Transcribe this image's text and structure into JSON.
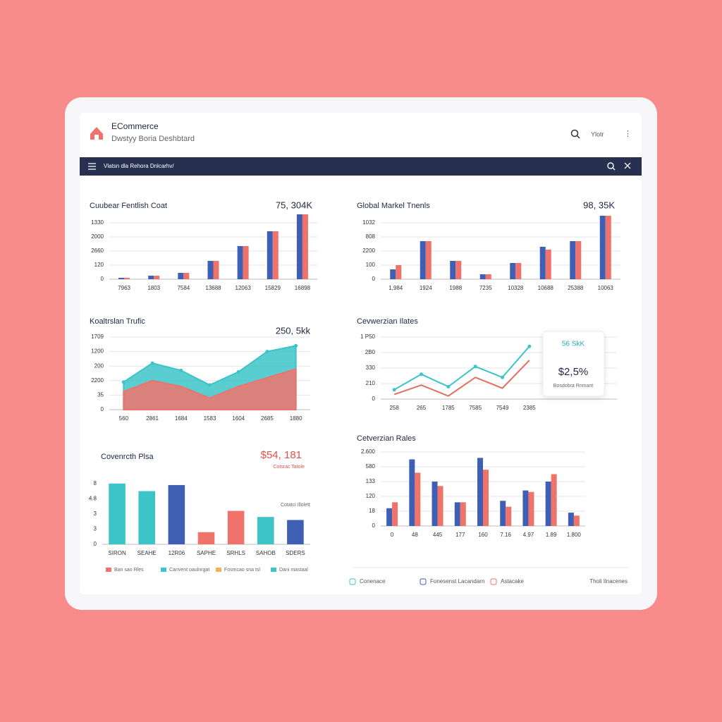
{
  "header": {
    "title": "ECommerce",
    "subtitle": "Dwstyy Boria Deshbtard",
    "search": "Ylotr"
  },
  "nav": {
    "label": "Vlatsn dla Rehora Dnlcarhv/"
  },
  "chart_data": [
    {
      "type": "bar",
      "title": "Cuubear Fentlish Coat",
      "highlight": "75, 304K",
      "categories": [
        "7963",
        "1803",
        "7584",
        "13688",
        "12063",
        "15829",
        "16898"
      ],
      "series": [
        {
          "color": "#3f5fb5",
          "values": [
            0.1,
            0.25,
            0.45,
            1.3,
            2.35,
            3.4,
            4.6
          ]
        },
        {
          "color": "#f0736b",
          "values": [
            0.1,
            0.25,
            0.45,
            1.3,
            2.35,
            3.4,
            4.6
          ]
        }
      ],
      "ylim": [
        0,
        5
      ],
      "yticks": [
        0,
        {
          "value": 1,
          "label": "120"
        },
        {
          "value": 2,
          "label": "2660"
        },
        {
          "value": 3,
          "label": "2000"
        },
        {
          "value": 4,
          "label": "1330"
        }
      ],
      "grid": true
    },
    {
      "type": "bar",
      "title": "Global Markel Tnenls",
      "highlight": "98, 35K",
      "categories": [
        "1,984",
        "1924",
        "1988",
        "7235",
        "10328",
        "10688",
        "25388",
        "10063"
      ],
      "series": [
        {
          "color": "#3f5fb5",
          "values": [
            0.7,
            2.7,
            1.3,
            0.35,
            1.15,
            2.3,
            2.7,
            4.5
          ]
        },
        {
          "color": "#f0736b",
          "values": [
            1.0,
            2.7,
            1.3,
            0.35,
            1.15,
            2.1,
            2.7,
            4.5
          ]
        }
      ],
      "ylim": [
        0,
        5
      ],
      "yticks": [
        0,
        {
          "value": 1,
          "label": "100"
        },
        {
          "value": 2,
          "label": "2200"
        },
        {
          "value": 3,
          "label": "808"
        },
        {
          "value": 4,
          "label": "1032"
        }
      ],
      "grid": true
    },
    {
      "type": "area",
      "title": "Koaltrslan Trufic",
      "highlight": "250, 5kk",
      "categories": [
        "560",
        "2861",
        "1684",
        "1583",
        "1604",
        "2685",
        "1880"
      ],
      "series": [
        {
          "color": "#3dc4c8",
          "values": [
            1.9,
            3.2,
            2.7,
            1.7,
            2.6,
            4.0,
            4.4
          ]
        },
        {
          "color": "#f0736b",
          "values": [
            1.25,
            2.0,
            1.6,
            0.8,
            1.6,
            2.2,
            2.8
          ]
        }
      ],
      "ylim": [
        0,
        5
      ],
      "yticks": [
        0,
        {
          "value": 1,
          "label": "35"
        },
        {
          "value": 2,
          "label": "2200"
        },
        {
          "value": 3,
          "label": "200"
        },
        {
          "value": 4,
          "label": "1200"
        },
        {
          "value": 5,
          "label": "1709"
        }
      ],
      "grid": true
    },
    {
      "type": "line",
      "title": "Cevwerzian Ilates",
      "categories": [
        "258",
        "265",
        "1785",
        "7585",
        "7549",
        "2385"
      ],
      "series": [
        {
          "color": "#3dc4c8",
          "values": [
            0.6,
            1.6,
            0.8,
            2.1,
            1.4,
            3.4
          ]
        },
        {
          "color": "#e0705f",
          "values": [
            0.3,
            0.9,
            0.2,
            1.4,
            0.7,
            2.5
          ]
        }
      ],
      "ylim": [
        0,
        4.5
      ],
      "yticks": [
        0,
        {
          "value": 1,
          "label": "210"
        },
        {
          "value": 2,
          "label": "330"
        },
        {
          "value": 3,
          "label": "2B0"
        },
        {
          "value": 4,
          "label": "1 P50"
        }
      ],
      "grid": true,
      "tooltip": {
        "title": "56 SkK",
        "value": "$2,5%",
        "caption": "Bosdobra Rnmant"
      }
    },
    {
      "type": "bar",
      "title": "Covenrcth Plsa",
      "highlight": "$54, 181",
      "highlight_caption": "Cotsrac Tatole",
      "annotation": "Cotatci Illolett",
      "categories": [
        "SIRON",
        "SEAHE",
        "12R06",
        "SAPHE",
        "SRHLS",
        "SAHOB",
        "SDERS"
      ],
      "values": [
        4.0,
        3.5,
        3.9,
        0.8,
        2.2,
        1.8,
        1.6
      ],
      "colors": [
        "#3dc4c8",
        "#3dc4c8",
        "#3f5fb5",
        "#f0736b",
        "#f0736b",
        "#3dc4c8",
        "#3f5fb5"
      ],
      "ylim": [
        0,
        4.5
      ],
      "yticks": [
        0,
        {
          "value": 1,
          "label": "3"
        },
        {
          "value": 2,
          "label": "3"
        },
        {
          "value": 3,
          "label": "4.8"
        },
        {
          "value": 4,
          "label": "8"
        }
      ],
      "grid": false,
      "legend": [
        {
          "name": "Ban sao Rles",
          "color": "#f0736b"
        },
        {
          "name": "Canvent oaulnrgat",
          "color": "#3dc4c8"
        },
        {
          "name": "Fosmcao sna tsl",
          "color": "#f2b25a"
        },
        {
          "name": "Dani mastaal",
          "color": "#3dc4c8"
        }
      ]
    },
    {
      "type": "bar",
      "title": "Cetverzian Rales",
      "categories": [
        "0",
        "48",
        "445",
        "177",
        "160",
        "7.16",
        "4.97",
        "1.89",
        "1.800"
      ],
      "series": [
        {
          "color": "#3f5fb5",
          "values": [
            1.2,
            4.5,
            3.0,
            1.6,
            4.6,
            1.7,
            2.4,
            3.0,
            0.9
          ]
        },
        {
          "color": "#f0736b",
          "values": [
            1.6,
            3.6,
            2.7,
            1.6,
            3.8,
            1.3,
            2.3,
            3.5,
            0.7
          ]
        }
      ],
      "ylim": [
        0,
        5
      ],
      "yticks": [
        0,
        {
          "value": 1,
          "label": "18"
        },
        {
          "value": 2,
          "label": "120"
        },
        {
          "value": 3,
          "label": "133"
        },
        {
          "value": 4,
          "label": "580"
        },
        {
          "value": 5,
          "label": "2.600"
        }
      ],
      "grid": true
    }
  ],
  "footer": {
    "items": [
      "Conenace",
      "Fonesenst Lacandarn",
      "Astacake"
    ],
    "note": "Tholi Ilnacenes"
  }
}
